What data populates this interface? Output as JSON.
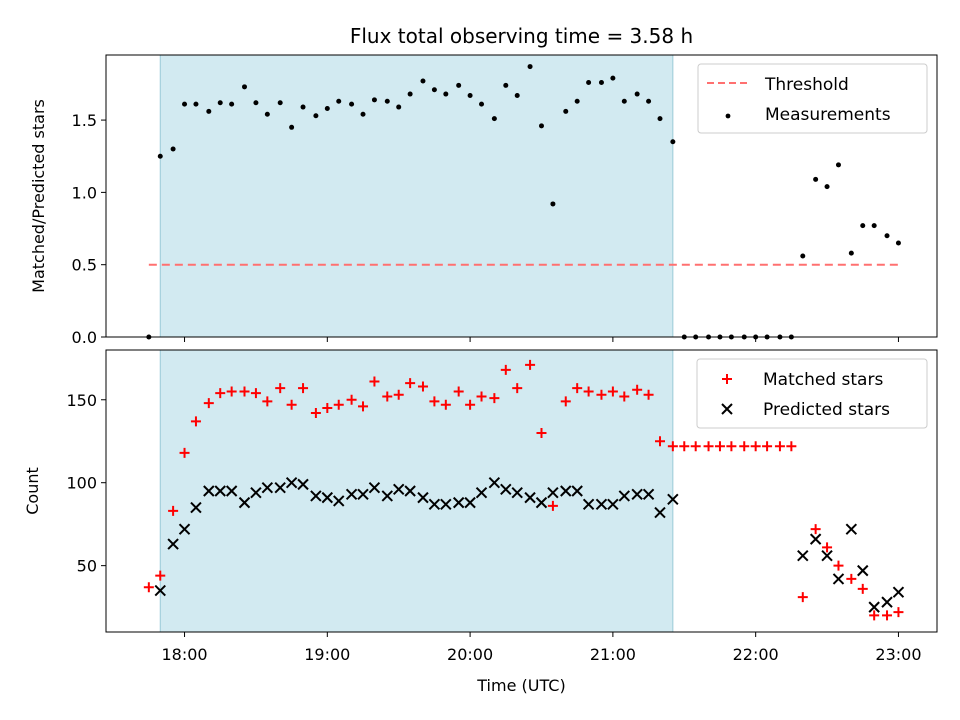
{
  "figure": {
    "title": "Flux total observing time = 3.58 h",
    "xlabel": "Time (UTC)",
    "xtick_labels": [
      "18:00",
      "19:00",
      "20:00",
      "21:00",
      "22:00",
      "23:00"
    ]
  },
  "chart_data": [
    {
      "type": "scatter",
      "panel": "top",
      "title": "Flux total observing time = 3.58 h",
      "xlabel": "",
      "ylabel": "Matched/Predicted stars",
      "x_unit": "hours UTC",
      "xlim": [
        17.45,
        23.27
      ],
      "ylim": [
        0,
        1.95
      ],
      "yticks": [
        0.0,
        0.5,
        1.0,
        1.5
      ],
      "ytick_labels": [
        "0.0",
        "0.5",
        "1.0",
        "1.5"
      ],
      "shaded_region": {
        "x": [
          17.83,
          21.42
        ],
        "color": "#add8e6"
      },
      "legend": {
        "position": "top-right",
        "entries": [
          "Threshold",
          "Measurements"
        ]
      },
      "series": [
        {
          "name": "Threshold",
          "kind": "dashed-line",
          "color": "#ff7070",
          "x": [
            17.75,
            23.03
          ],
          "values": [
            0.5,
            0.5
          ]
        },
        {
          "name": "Measurements",
          "kind": "dot",
          "color": "#000000",
          "x": [
            17.75,
            17.83,
            17.92,
            18.0,
            18.08,
            18.17,
            18.25,
            18.33,
            18.42,
            18.5,
            18.58,
            18.67,
            18.75,
            18.83,
            18.92,
            19.0,
            19.08,
            19.17,
            19.25,
            19.33,
            19.42,
            19.5,
            19.58,
            19.67,
            19.75,
            19.83,
            19.92,
            20.0,
            20.08,
            20.17,
            20.25,
            20.33,
            20.42,
            20.5,
            20.58,
            20.67,
            20.75,
            20.83,
            20.92,
            21.0,
            21.08,
            21.17,
            21.25,
            21.33,
            21.42,
            21.5,
            21.58,
            21.67,
            21.75,
            21.83,
            21.92,
            22.0,
            22.08,
            22.17,
            22.25,
            22.33,
            22.42,
            22.5,
            22.58,
            22.67,
            22.75,
            22.83,
            22.92,
            23.0
          ],
          "values": [
            0.0,
            1.25,
            1.3,
            1.61,
            1.61,
            1.56,
            1.62,
            1.61,
            1.73,
            1.62,
            1.54,
            1.62,
            1.45,
            1.59,
            1.53,
            1.58,
            1.63,
            1.61,
            1.54,
            1.64,
            1.63,
            1.59,
            1.68,
            1.77,
            1.71,
            1.68,
            1.74,
            1.67,
            1.61,
            1.51,
            1.74,
            1.67,
            1.87,
            1.46,
            0.92,
            1.56,
            1.63,
            1.76,
            1.76,
            1.79,
            1.63,
            1.68,
            1.63,
            1.51,
            1.35,
            0.0,
            0.0,
            0.0,
            0.0,
            0.0,
            0.0,
            0.0,
            0.0,
            0.0,
            0.0,
            0.56,
            1.09,
            1.04,
            1.19,
            0.58,
            0.77,
            0.77,
            0.7,
            0.65
          ]
        }
      ]
    },
    {
      "type": "scatter",
      "panel": "bottom",
      "title": "",
      "xlabel": "Time (UTC)",
      "ylabel": "Count",
      "x_unit": "hours UTC",
      "xlim": [
        17.45,
        23.27
      ],
      "ylim": [
        10,
        180
      ],
      "yticks": [
        50,
        100,
        150
      ],
      "ytick_labels": [
        "50",
        "100",
        "150"
      ],
      "shaded_region": {
        "x": [
          17.83,
          21.42
        ],
        "color": "#add8e6"
      },
      "legend": {
        "position": "top-right",
        "entries": [
          "Matched stars",
          "Predicted stars"
        ]
      },
      "series": [
        {
          "name": "Matched stars",
          "kind": "plus",
          "color": "#ff0000",
          "x": [
            17.75,
            17.83,
            17.92,
            18.0,
            18.08,
            18.17,
            18.25,
            18.33,
            18.42,
            18.5,
            18.58,
            18.67,
            18.75,
            18.83,
            18.92,
            19.0,
            19.08,
            19.17,
            19.25,
            19.33,
            19.42,
            19.5,
            19.58,
            19.67,
            19.75,
            19.83,
            19.92,
            20.0,
            20.08,
            20.17,
            20.25,
            20.33,
            20.42,
            20.5,
            20.58,
            20.67,
            20.75,
            20.83,
            20.92,
            21.0,
            21.08,
            21.17,
            21.25,
            21.33,
            21.42,
            21.5,
            21.58,
            21.67,
            21.75,
            21.83,
            21.92,
            22.0,
            22.08,
            22.17,
            22.25,
            22.33,
            22.42,
            22.5,
            22.58,
            22.67,
            22.75,
            22.83,
            22.92,
            23.0
          ],
          "values": [
            37,
            44,
            83,
            118,
            137,
            148,
            154,
            155,
            155,
            154,
            149,
            157,
            147,
            157,
            142,
            145,
            147,
            150,
            146,
            161,
            152,
            153,
            160,
            158,
            149,
            147,
            155,
            147,
            152,
            151,
            168,
            157,
            171,
            130,
            86,
            149,
            157,
            155,
            153,
            155,
            152,
            156,
            153,
            125,
            122,
            122,
            122,
            122,
            122,
            122,
            122,
            122,
            122,
            122,
            122,
            31,
            72,
            61,
            50,
            42,
            36,
            20,
            20,
            22
          ]
        },
        {
          "name": "Predicted stars",
          "kind": "cross",
          "color": "#000000",
          "x": [
            17.83,
            17.92,
            18.0,
            18.08,
            18.17,
            18.25,
            18.33,
            18.42,
            18.5,
            18.58,
            18.67,
            18.75,
            18.83,
            18.92,
            19.0,
            19.08,
            19.17,
            19.25,
            19.33,
            19.42,
            19.5,
            19.58,
            19.67,
            19.75,
            19.83,
            19.92,
            20.0,
            20.08,
            20.17,
            20.25,
            20.33,
            20.42,
            20.5,
            20.58,
            20.67,
            20.75,
            20.83,
            20.92,
            21.0,
            21.08,
            21.17,
            21.25,
            21.33,
            21.42,
            22.33,
            22.42,
            22.5,
            22.58,
            22.67,
            22.75,
            22.83,
            22.92,
            23.0
          ],
          "values": [
            35,
            63,
            72,
            85,
            95,
            95,
            95,
            88,
            94,
            97,
            97,
            100,
            99,
            92,
            91,
            89,
            93,
            93,
            97,
            92,
            96,
            95,
            91,
            87,
            87,
            88,
            88,
            94,
            100,
            96,
            94,
            91,
            88,
            94,
            95,
            95,
            87,
            87,
            87,
            92,
            93,
            93,
            82,
            90,
            56,
            66,
            56,
            42,
            72,
            47,
            25,
            28,
            34
          ]
        }
      ]
    }
  ]
}
